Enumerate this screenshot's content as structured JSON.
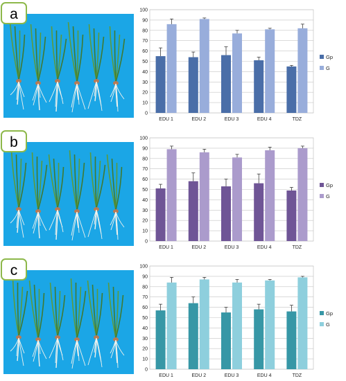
{
  "panels": [
    {
      "label": "a",
      "photo_alt": "",
      "chart_id": 0
    },
    {
      "label": "b",
      "photo_alt": "",
      "chart_id": 1
    },
    {
      "label": "c",
      "photo_alt": "",
      "chart_id": 2
    }
  ],
  "colors": {
    "photo_background": "#1ba6e6",
    "label_border": "#8db84a",
    "panel_a": {
      "Gp": "#4a6ea8",
      "G": "#98addb"
    },
    "panel_b": {
      "Gp": "#6f5596",
      "G": "#ab9bcc"
    },
    "panel_c": {
      "Gp": "#3797a6",
      "G": "#8ecfdd"
    }
  },
  "chart_data": [
    {
      "type": "bar",
      "categories": [
        "EDU 1",
        "EDU 2",
        "EDU 3",
        "EDU 4",
        "TDZ"
      ],
      "series": [
        {
          "name": "Gp",
          "values": [
            55,
            54,
            56,
            51,
            45
          ],
          "errors": [
            8,
            5,
            8,
            3,
            1
          ]
        },
        {
          "name": "G",
          "values": [
            86,
            91,
            77,
            81,
            82
          ],
          "errors": [
            5,
            1,
            3,
            1,
            4
          ]
        }
      ],
      "ylim": [
        0,
        100
      ],
      "yticks": [
        0,
        10,
        20,
        30,
        40,
        50,
        60,
        70,
        80,
        90,
        100
      ],
      "grid": true,
      "legend": "right"
    },
    {
      "type": "bar",
      "categories": [
        "EDU 1",
        "EDU 2",
        "EDU 3",
        "EDU 4",
        "TDZ"
      ],
      "series": [
        {
          "name": "Gp",
          "values": [
            51,
            58,
            53,
            56,
            49
          ],
          "errors": [
            4,
            8,
            7,
            9,
            3
          ]
        },
        {
          "name": "G",
          "values": [
            89,
            86,
            81,
            88,
            90
          ],
          "errors": [
            3,
            3,
            3,
            3,
            2
          ]
        }
      ],
      "ylim": [
        0,
        100
      ],
      "yticks": [
        0,
        10,
        20,
        30,
        40,
        50,
        60,
        70,
        80,
        90,
        100
      ],
      "grid": true,
      "legend": "right"
    },
    {
      "type": "bar",
      "categories": [
        "EDU 1",
        "EDU 2",
        "EDU 3",
        "EDU 4",
        "TDZ"
      ],
      "series": [
        {
          "name": "Gp",
          "values": [
            57,
            64,
            55,
            58,
            56
          ],
          "errors": [
            6,
            6,
            5,
            5,
            6
          ]
        },
        {
          "name": "G",
          "values": [
            84,
            87,
            84,
            86,
            89
          ],
          "errors": [
            5,
            2,
            3,
            1,
            1
          ]
        }
      ],
      "ylim": [
        0,
        100
      ],
      "yticks": [
        0,
        10,
        20,
        30,
        40,
        50,
        60,
        70,
        80,
        90,
        100
      ],
      "grid": true,
      "legend": "right"
    }
  ]
}
